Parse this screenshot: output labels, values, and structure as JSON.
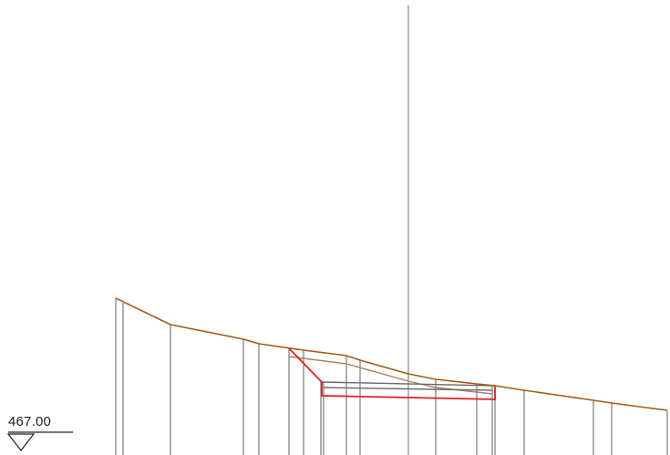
{
  "datum": {
    "elevation_label": "467.00"
  },
  "colors": {
    "ground_line": "#a65a14",
    "existing_surface": "#b08060",
    "excavation": "#e02020",
    "station_lines": "#7a7a7a",
    "centerline": "#8a8a8a",
    "structure": "#6a6a6a",
    "datum_symbol": "#222222"
  },
  "icons": {
    "datum_marker": "datum-triangle-icon"
  }
}
